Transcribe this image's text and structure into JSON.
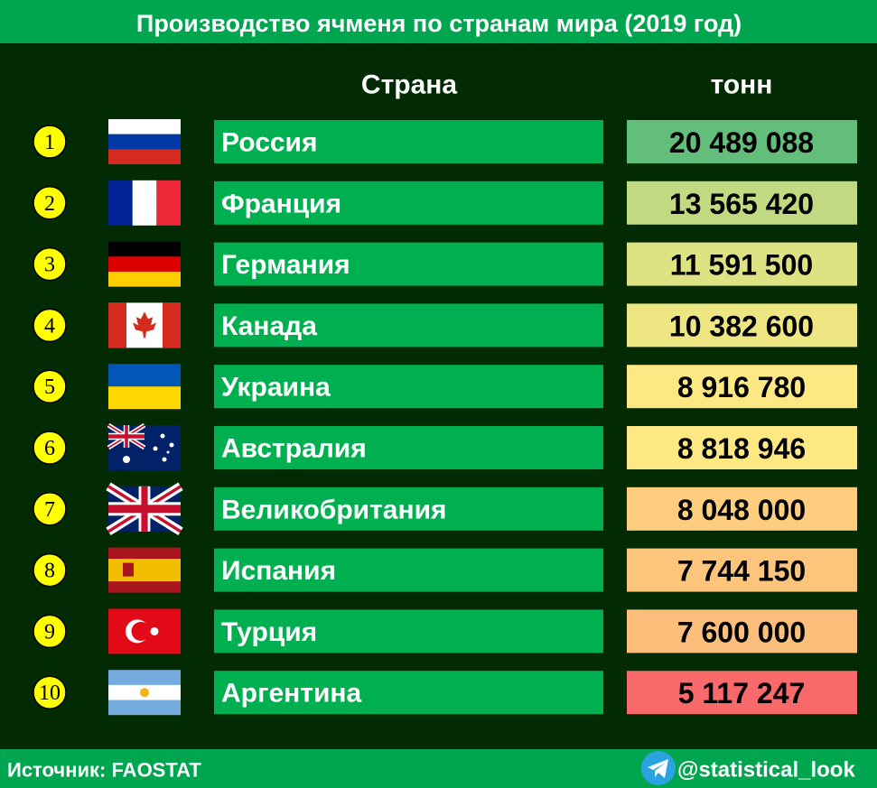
{
  "header": {
    "title": "Производство ячменя по странам мира (2019 год)"
  },
  "table": {
    "columns": [
      "Страна",
      "тонн"
    ],
    "rows": [
      {
        "rank": "1",
        "country": "Россия",
        "value": "20 489 088",
        "color": "#63be7b"
      },
      {
        "rank": "2",
        "country": "Франция",
        "value": "13 565 420",
        "color": "#c1da81"
      },
      {
        "rank": "3",
        "country": "Германия",
        "value": "11 591 500",
        "color": "#dde283"
      },
      {
        "rank": "4",
        "country": "Канада",
        "value": "10 382 600",
        "color": "#ede683"
      },
      {
        "rank": "5",
        "country": "Украина",
        "value": "8 916 780",
        "color": "#fee883"
      },
      {
        "rank": "6",
        "country": "Австралия",
        "value": "8 818 946",
        "color": "#fee883"
      },
      {
        "rank": "7",
        "country": "Великобритания",
        "value": "8 048 000",
        "color": "#fecd7e"
      },
      {
        "rank": "8",
        "country": "Испания",
        "value": "7 744 150",
        "color": "#fdc47c"
      },
      {
        "rank": "9",
        "country": "Турция",
        "value": "7 600 000",
        "color": "#fcbf7b"
      },
      {
        "rank": "10",
        "country": "Аргентина",
        "value": "5 117 247",
        "color": "#f8696b"
      }
    ]
  },
  "footer": {
    "source": "Источник: FAOSTAT",
    "handle": "@statistical_look"
  }
}
